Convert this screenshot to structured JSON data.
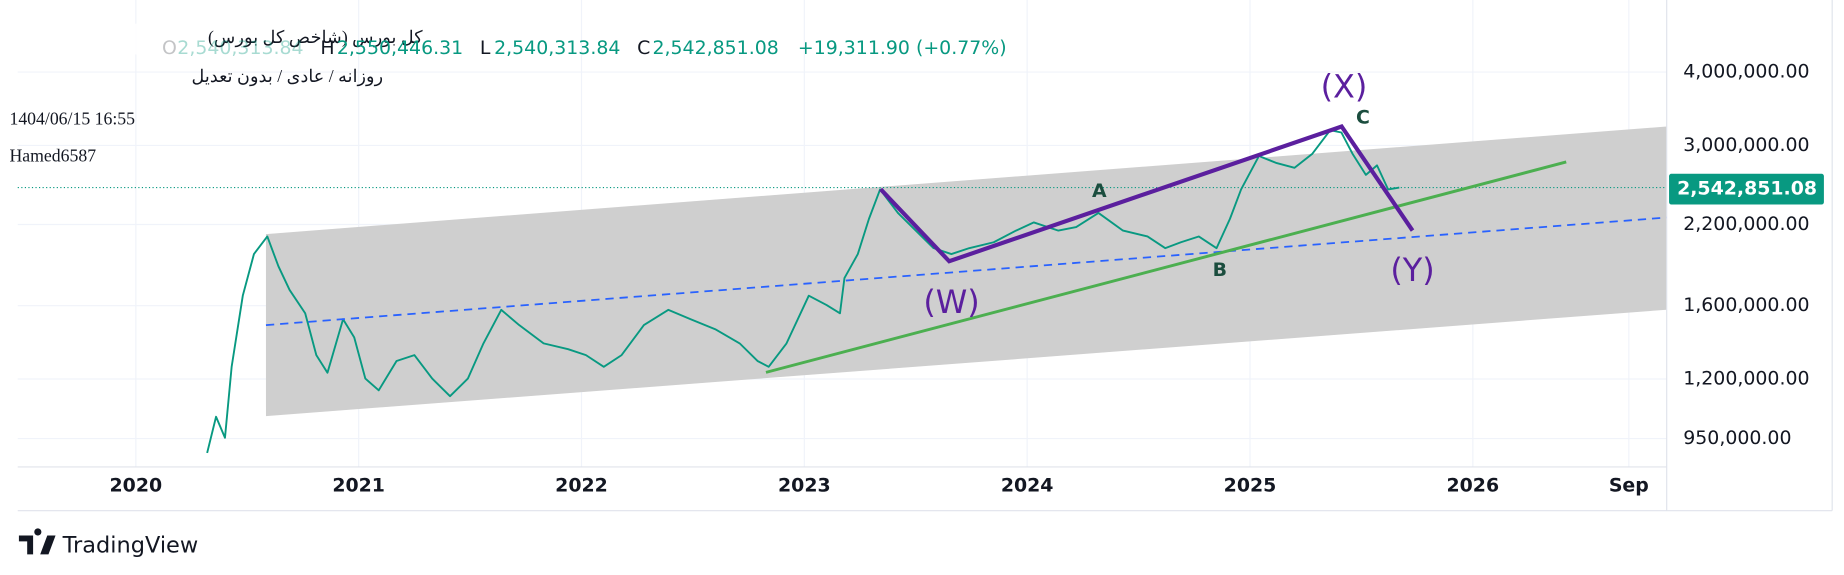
{
  "chart_data": {
    "type": "line",
    "title": "کل بورس (شاخص کل بورس)",
    "subtitle": "روزانه / عادی / بدون تعدیل",
    "timestamp": "1404/06/15 16:55",
    "author": "Hamed6587",
    "brand": "TradingView",
    "ohlc": [
      {
        "key": "O",
        "value": "2,540,313.84"
      },
      {
        "key": "H",
        "value": "2,550,446.31"
      },
      {
        "key": "L",
        "value": "2,540,313.84"
      },
      {
        "key": "C",
        "value": "2,542,851.08"
      }
    ],
    "change": "+19,311.90 (+0.77%)",
    "last_price_label": "2,542,851.08",
    "annotations": [
      "(W)",
      "(X)",
      "(Y)",
      "A",
      "B",
      "C"
    ],
    "log_scale": true,
    "grid": true,
    "xlim": [
      2019.47,
      2026.87
    ],
    "ylim": [
      850000,
      4950000
    ],
    "xticks": [
      2020,
      2021,
      2022,
      2023,
      2024,
      2025,
      2026,
      {
        "value": 2026.7,
        "label": "Sep"
      }
    ],
    "yticks": [
      {
        "value": 4000000,
        "label": "4,000,000.00"
      },
      {
        "value": 3000000,
        "label": "3,000,000.00"
      },
      {
        "value": 2200000,
        "label": "2,200,000.00"
      },
      {
        "value": 1600000,
        "label": "1,600,000.00"
      },
      {
        "value": 1200000,
        "label": "1,200,000.00"
      },
      {
        "value": 950000,
        "label": "950,000.00"
      }
    ],
    "x": [
      2020.32,
      2020.36,
      2020.4,
      2020.43,
      2020.48,
      2020.53,
      2020.59,
      2020.64,
      2020.69,
      2020.76,
      2020.81,
      2020.86,
      2020.93,
      2020.98,
      2021.03,
      2021.09,
      2021.17,
      2021.25,
      2021.33,
      2021.41,
      2021.49,
      2021.56,
      2021.64,
      2021.72,
      2021.83,
      2021.94,
      2022.02,
      2022.1,
      2022.18,
      2022.28,
      2022.39,
      2022.49,
      2022.6,
      2022.71,
      2022.79,
      2022.84,
      2022.92,
      2023.02,
      2023.1,
      2023.16,
      2023.18,
      2023.24,
      2023.29,
      2023.34,
      2023.42,
      2023.5,
      2023.58,
      2023.66,
      2023.74,
      2023.85,
      2023.95,
      2024.03,
      2024.14,
      2024.22,
      2024.32,
      2024.43,
      2024.54,
      2024.62,
      2024.69,
      2024.77,
      2024.85,
      2024.91,
      2024.96,
      2025.04,
      2025.12,
      2025.2,
      2025.28,
      2025.36,
      2025.41,
      2025.46,
      2025.52,
      2025.57,
      2025.62,
      2025.67
    ],
    "series": [
      {
        "name": "کل بورس",
        "color": "#089981",
        "values": [
          898000,
          1035000,
          953000,
          1259000,
          1664000,
          1959000,
          2099000,
          1867000,
          1702000,
          1553000,
          1318000,
          1230000,
          1517000,
          1413000,
          1202000,
          1148000,
          1288000,
          1318000,
          1202000,
          1122000,
          1202000,
          1380000,
          1574000,
          1483000,
          1380000,
          1349000,
          1318000,
          1259000,
          1318000,
          1483000,
          1574000,
          1517000,
          1459000,
          1380000,
          1288000,
          1259000,
          1380000,
          1664000,
          1604000,
          1553000,
          1783000,
          1959000,
          2249000,
          2524000,
          2302000,
          2148000,
          2005000,
          1959000,
          2005000,
          2052000,
          2148000,
          2218000,
          2148000,
          2178000,
          2302000,
          2148000,
          2099000,
          2005000,
          2052000,
          2099000,
          2005000,
          2249000,
          2524000,
          2878000,
          2799000,
          2748000,
          2904000,
          3185000,
          3156000,
          2904000,
          2673000,
          2774000,
          2524000,
          2542851.08
        ]
      }
    ]
  }
}
